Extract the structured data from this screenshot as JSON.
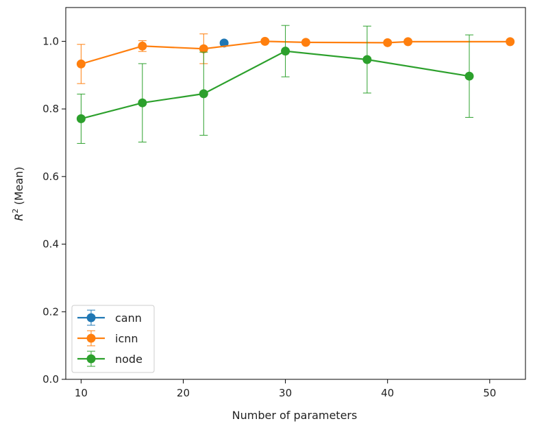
{
  "chart_data": {
    "type": "line",
    "title": "",
    "xlabel": "Number of parameters",
    "ylabel_main": "R",
    "ylabel_sup": "2",
    "ylabel_rest": " (Mean)",
    "xlim": [
      8.5,
      53.5
    ],
    "ylim": [
      0.0,
      1.1
    ],
    "x_ticks": [
      10,
      20,
      30,
      40,
      50
    ],
    "y_ticks": [
      0.0,
      0.2,
      0.4,
      0.6,
      0.8,
      1.0
    ],
    "y_tick_labels": [
      "0.0",
      "0.2",
      "0.4",
      "0.6",
      "0.8",
      "1.0"
    ],
    "grid": false,
    "legend_position": "lower-left",
    "series": [
      {
        "name": "cann",
        "color": "#1f77b4",
        "x": [
          24
        ],
        "y": [
          0.995
        ],
        "err": [
          0.0
        ]
      },
      {
        "name": "icnn",
        "color": "#ff7f0e",
        "x": [
          10,
          16,
          22,
          28,
          32,
          40,
          42,
          52
        ],
        "y": [
          0.933,
          0.986,
          0.978,
          1.0,
          0.997,
          0.996,
          0.999,
          0.999
        ],
        "err": [
          0.058,
          0.016,
          0.044,
          0.002,
          0.002,
          0.002,
          0.002,
          0.002
        ]
      },
      {
        "name": "node",
        "color": "#2ca02c",
        "x": [
          10,
          16,
          22,
          30,
          38,
          48
        ],
        "y": [
          0.771,
          0.818,
          0.845,
          0.971,
          0.946,
          0.897
        ],
        "err": [
          0.073,
          0.116,
          0.123,
          0.076,
          0.099,
          0.122
        ]
      }
    ]
  }
}
